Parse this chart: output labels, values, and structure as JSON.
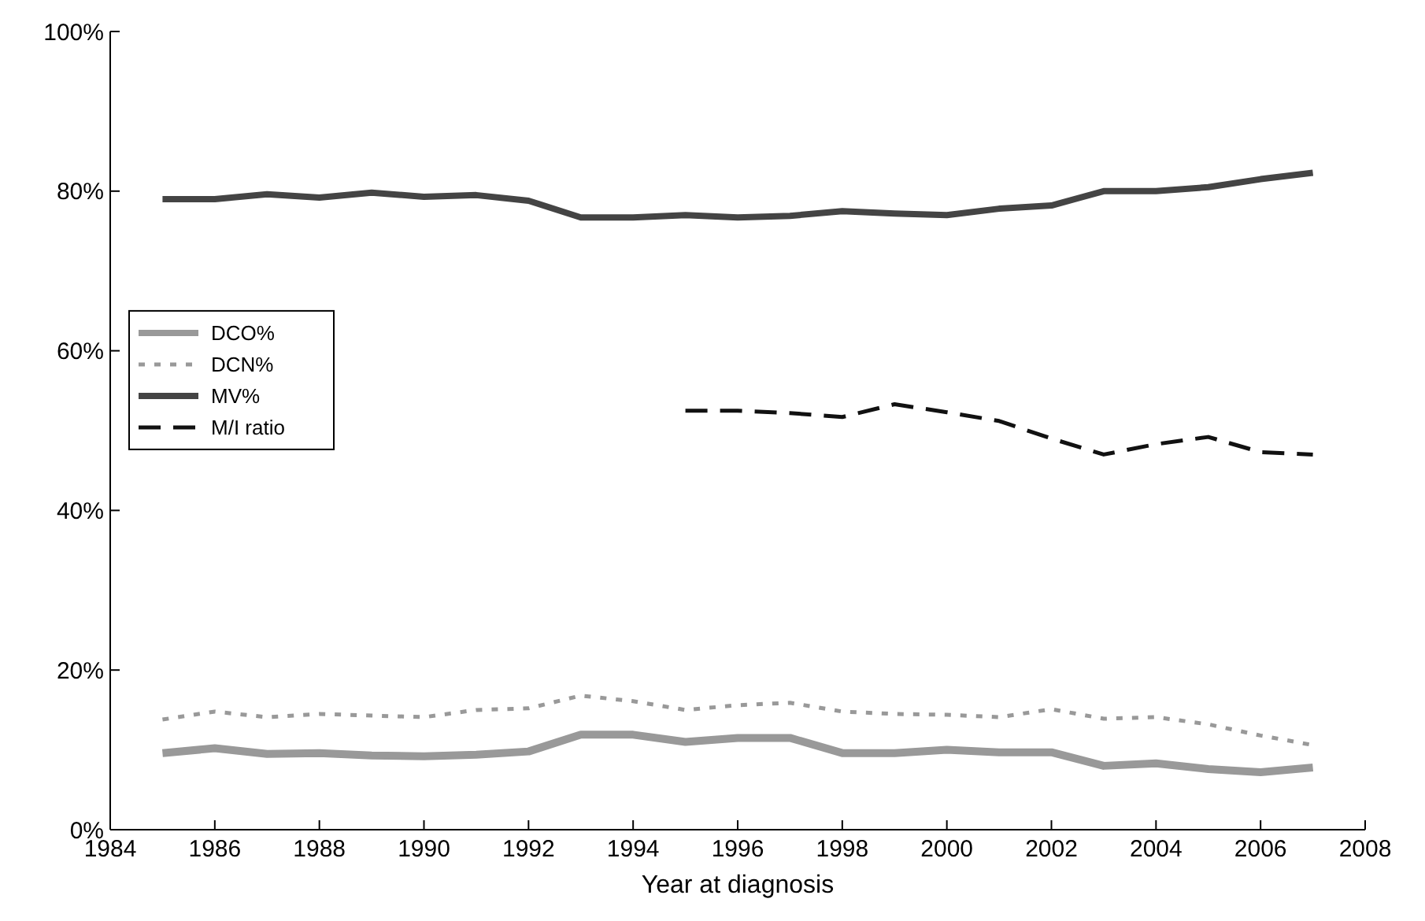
{
  "chart_data": {
    "type": "line",
    "xlabel": "Year at diagnosis",
    "x": [
      1985,
      1986,
      1987,
      1988,
      1989,
      1990,
      1991,
      1992,
      1993,
      1994,
      1995,
      1996,
      1997,
      1998,
      1999,
      2000,
      2001,
      2002,
      2003,
      2004,
      2005,
      2006,
      2007
    ],
    "series": [
      {
        "name": "DCO%",
        "color": "#999999",
        "line_style": "solid",
        "values": [
          9.6,
          10.2,
          9.5,
          9.6,
          9.3,
          9.2,
          9.4,
          9.8,
          11.9,
          11.9,
          11.0,
          11.5,
          11.5,
          9.6,
          9.6,
          10,
          9.7,
          9.7,
          8,
          8.3,
          7.6,
          7.2,
          7.8
        ]
      },
      {
        "name": "DCN%",
        "color": "#999999",
        "line_style": "dotted",
        "values": [
          13.8,
          14.8,
          14.1,
          14.5,
          14.3,
          14.1,
          15,
          15.2,
          16.8,
          16.1,
          15,
          15.6,
          15.9,
          14.8,
          14.5,
          14.4,
          14.1,
          15.1,
          13.9,
          14.1,
          13.2,
          11.8,
          10.6
        ]
      },
      {
        "name": "MV%",
        "color": "#444444",
        "line_style": "solid",
        "values": [
          79,
          79,
          79.6,
          79.2,
          79.8,
          79.3,
          79.5,
          78.8,
          76.7,
          76.7,
          77,
          76.7,
          76.9,
          77.5,
          77.2,
          77,
          77.8,
          78.2,
          80,
          80,
          80.5,
          81.5,
          82.3
        ]
      },
      {
        "name": "M/I ratio",
        "color": "#111111",
        "line_style": "dashed",
        "values": [
          null,
          null,
          null,
          null,
          null,
          null,
          null,
          null,
          null,
          null,
          52.5,
          52.5,
          52.2,
          51.7,
          53.3,
          52.3,
          51.2,
          49,
          47,
          48.3,
          49.2,
          47.3,
          47
        ]
      }
    ],
    "xlim": [
      1984,
      2008
    ],
    "xticks": [
      1984,
      1986,
      1988,
      1990,
      1992,
      1994,
      1996,
      1998,
      2000,
      2002,
      2004,
      2006,
      2008
    ],
    "ylim": [
      0,
      100
    ],
    "yticks": [
      {
        "value": 0,
        "label": "0%"
      },
      {
        "value": 20,
        "label": "20%"
      },
      {
        "value": 40,
        "label": "40%"
      },
      {
        "value": 60,
        "label": "60%"
      },
      {
        "value": 80,
        "label": "80%"
      },
      {
        "value": 100,
        "label": "100%"
      }
    ],
    "grid": false,
    "legend": "center left",
    "marker": "none"
  }
}
